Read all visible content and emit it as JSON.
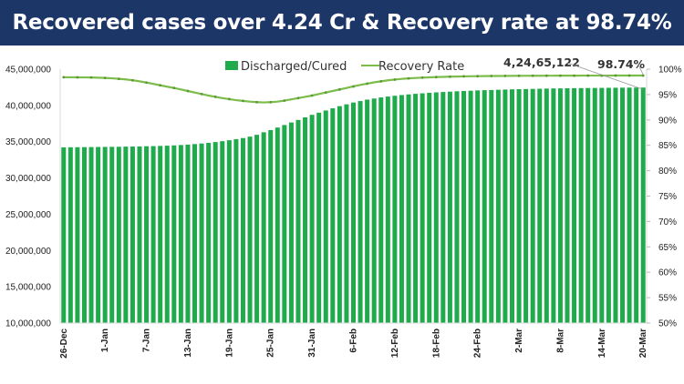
{
  "title": "Recovered cases over 4.24 Cr & Recovery rate at 98.74%",
  "colors": {
    "banner": "#1c3667",
    "bars": "#1faa4b",
    "line": "#7cbc4a"
  },
  "chart_data": {
    "type": "bar+line",
    "title": "Recovered cases over 4.24 Cr & Recovery rate at 98.74%",
    "legend": {
      "position": "top",
      "entries": [
        "Discharged/Cured",
        "Recovery Rate"
      ]
    },
    "x_tick_labels": [
      "26-Dec",
      "1-Jan",
      "7-Jan",
      "13-Jan",
      "19-Jan",
      "25-Jan",
      "31-Jan",
      "6-Feb",
      "12-Feb",
      "18-Feb",
      "24-Feb",
      "2-Mar",
      "8-Mar",
      "14-Mar",
      "20-Mar"
    ],
    "x_range": [
      "26-Dec",
      "20-Mar"
    ],
    "y_left": {
      "min": 10000000,
      "max": 45000000,
      "step": 5000000,
      "tick_labels": [
        "10,000,000",
        "15,000,000",
        "20,000,000",
        "25,000,000",
        "30,000,000",
        "35,000,000",
        "40,000,000",
        "45,000,000"
      ]
    },
    "y_right": {
      "min": 50,
      "max": 100,
      "step": 5,
      "tick_labels": [
        "50%",
        "55%",
        "60%",
        "65%",
        "70%",
        "75%",
        "80%",
        "85%",
        "90%",
        "95%",
        "100%"
      ]
    },
    "grid": false,
    "series": [
      {
        "name": "Discharged/Cured",
        "type": "bar",
        "axis": "left",
        "unit": "millions",
        "values": [
          34.22,
          34.23,
          34.24,
          34.25,
          34.26,
          34.27,
          34.28,
          34.29,
          34.3,
          34.32,
          34.33,
          34.35,
          34.37,
          34.39,
          34.42,
          34.45,
          34.49,
          34.54,
          34.6,
          34.67,
          34.75,
          34.84,
          34.95,
          35.07,
          35.2,
          35.35,
          35.5,
          35.7,
          35.95,
          36.3,
          36.6,
          36.95,
          37.3,
          37.65,
          38.0,
          38.35,
          38.7,
          39.0,
          39.3,
          39.6,
          39.9,
          40.15,
          40.4,
          40.6,
          40.8,
          40.95,
          41.1,
          41.22,
          41.33,
          41.43,
          41.52,
          41.6,
          41.67,
          41.74,
          41.8,
          41.85,
          41.9,
          41.95,
          41.99,
          42.03,
          42.07,
          42.1,
          42.13,
          42.16,
          42.19,
          42.22,
          42.24,
          42.26,
          42.28,
          42.3,
          42.32,
          42.34,
          42.35,
          42.37,
          42.38,
          42.39,
          42.4,
          42.41,
          42.42,
          42.43,
          42.44,
          42.45,
          42.455,
          42.46,
          42.465
        ]
      },
      {
        "name": "Recovery Rate",
        "type": "line",
        "axis": "right",
        "unit": "%",
        "values": [
          98.4,
          98.4,
          98.39,
          98.38,
          98.36,
          98.32,
          98.27,
          98.2,
          98.1,
          97.98,
          97.81,
          97.6,
          97.36,
          97.1,
          96.82,
          96.55,
          96.3,
          96.0,
          95.7,
          95.4,
          95.1,
          94.8,
          94.55,
          94.3,
          94.1,
          93.9,
          93.75,
          93.6,
          93.5,
          93.45,
          93.5,
          93.6,
          93.8,
          94.05,
          94.3,
          94.55,
          94.8,
          95.1,
          95.4,
          95.7,
          96.0,
          96.3,
          96.6,
          96.9,
          97.15,
          97.4,
          97.6,
          97.8,
          97.95,
          98.08,
          98.18,
          98.26,
          98.33,
          98.39,
          98.44,
          98.48,
          98.52,
          98.55,
          98.58,
          98.6,
          98.62,
          98.64,
          98.65,
          98.66,
          98.67,
          98.68,
          98.69,
          98.69,
          98.7,
          98.7,
          98.71,
          98.71,
          98.72,
          98.72,
          98.72,
          98.73,
          98.73,
          98.73,
          98.73,
          98.73,
          98.74,
          98.74,
          98.74,
          98.74,
          98.74
        ]
      }
    ],
    "annotations": [
      {
        "text": "4,24,65,122",
        "target": "Discharged/Cured",
        "at": "20-Mar"
      },
      {
        "text": "98.74%",
        "target": "Recovery Rate",
        "at": "20-Mar"
      }
    ]
  }
}
